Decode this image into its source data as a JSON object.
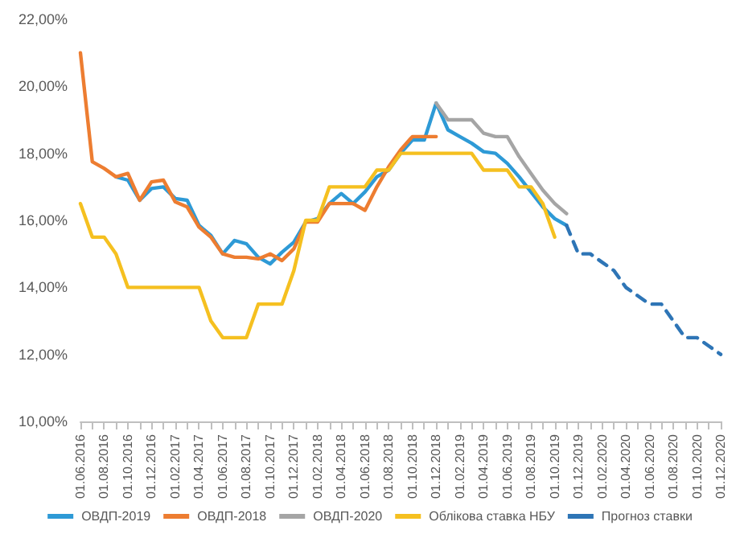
{
  "chart_data": {
    "type": "line",
    "categories": [
      "01.06.2016",
      null,
      "01.08.2016",
      null,
      "01.10.2016",
      null,
      "01.12.2016",
      null,
      "01.02.2017",
      null,
      "01.04.2017",
      null,
      "01.06.2017",
      null,
      "01.08.2017",
      null,
      "01.10.2017",
      null,
      "01.12.2017",
      null,
      "01.02.2018",
      null,
      "01.04.2018",
      null,
      "01.06.2018",
      null,
      "01.08.2018",
      null,
      "01.10.2018",
      null,
      "01.12.2018",
      null,
      "01.02.2019",
      null,
      "01.04.2019",
      null,
      "01.06.2019",
      null,
      "01.08.2019",
      null,
      "01.10.2019",
      null,
      "01.12.2019",
      null,
      "01.02.2020",
      null,
      "01.04.2020",
      null,
      "01.06.2020",
      null,
      "01.08.2020",
      null,
      "01.10.2020",
      null,
      "01.12.2020"
    ],
    "series": [
      {
        "name": "ОВДП-2019",
        "color": "#2e9ad6",
        "values": [
          null,
          null,
          null,
          17.3,
          17.2,
          16.6,
          16.95,
          17.0,
          16.65,
          16.6,
          15.85,
          15.55,
          15.0,
          15.4,
          15.3,
          14.9,
          14.7,
          15.05,
          15.35,
          15.95,
          16.05,
          16.5,
          16.8,
          16.5,
          16.85,
          17.3,
          17.5,
          18.0,
          18.4,
          18.4,
          19.5,
          18.7,
          18.5,
          18.3,
          18.05,
          18.0,
          17.7,
          17.3,
          16.85,
          16.4,
          16.05,
          15.85,
          null,
          null,
          null,
          null,
          null,
          null,
          null,
          null,
          null,
          null,
          null,
          null,
          null
        ]
      },
      {
        "name": "ОВДП-2018",
        "color": "#ed7d31",
        "values": [
          21.0,
          17.75,
          17.55,
          17.3,
          17.4,
          16.6,
          17.15,
          17.2,
          16.55,
          16.4,
          15.8,
          15.5,
          15.0,
          14.9,
          14.9,
          14.85,
          15.0,
          14.8,
          15.15,
          15.95,
          15.95,
          16.5,
          16.5,
          16.5,
          16.3,
          17.0,
          17.6,
          18.1,
          18.5,
          18.5,
          18.5,
          null,
          null,
          null,
          null,
          null,
          null,
          null,
          null,
          null,
          null,
          null,
          null,
          null,
          null,
          null,
          null,
          null,
          null,
          null,
          null,
          null,
          null,
          null,
          null
        ]
      },
      {
        "name": "ОВДП-2020",
        "color": "#a5a5a5",
        "values": [
          null,
          null,
          null,
          null,
          null,
          null,
          null,
          null,
          null,
          null,
          null,
          null,
          null,
          null,
          null,
          null,
          null,
          null,
          null,
          null,
          null,
          null,
          null,
          null,
          null,
          null,
          null,
          null,
          null,
          null,
          19.5,
          19.0,
          19.0,
          19.0,
          18.6,
          18.5,
          18.5,
          17.9,
          17.4,
          16.9,
          16.5,
          16.2,
          null,
          null,
          null,
          null,
          null,
          null,
          null,
          null,
          null,
          null,
          null,
          null,
          null
        ]
      },
      {
        "name": "Облікова ставка НБУ",
        "color": "#f5c020",
        "values": [
          16.5,
          15.5,
          15.5,
          15.0,
          14.0,
          14.0,
          14.0,
          14.0,
          14.0,
          14.0,
          14.0,
          13.0,
          12.5,
          12.5,
          12.5,
          13.5,
          13.5,
          13.5,
          14.5,
          16.0,
          16.0,
          17.0,
          17.0,
          17.0,
          17.0,
          17.5,
          17.5,
          18.0,
          18.0,
          18.0,
          18.0,
          18.0,
          18.0,
          18.0,
          17.5,
          17.5,
          17.5,
          17.0,
          17.0,
          16.5,
          15.5,
          null,
          null,
          null,
          null,
          null,
          null,
          null,
          null,
          null,
          null,
          null,
          null,
          null,
          null
        ]
      },
      {
        "name": "Прогноз ставки",
        "color": "#2e75b6",
        "line_style": "dashed",
        "values": [
          null,
          null,
          null,
          null,
          null,
          null,
          null,
          null,
          null,
          null,
          null,
          null,
          null,
          null,
          null,
          null,
          null,
          null,
          null,
          null,
          null,
          null,
          null,
          null,
          null,
          null,
          null,
          null,
          null,
          null,
          null,
          null,
          null,
          null,
          null,
          null,
          null,
          null,
          null,
          null,
          null,
          15.85,
          15.0,
          15.0,
          14.75,
          14.5,
          14.0,
          13.75,
          13.5,
          13.5,
          13.0,
          12.5,
          12.5,
          12.25,
          12.0
        ]
      }
    ],
    "ylim": [
      10,
      22
    ],
    "yticks": [
      {
        "value": 10,
        "label": "10,00%"
      },
      {
        "value": 12,
        "label": "12,00%"
      },
      {
        "value": 14,
        "label": "14,00%"
      },
      {
        "value": 16,
        "label": "16,00%"
      },
      {
        "value": 18,
        "label": "18,00%"
      },
      {
        "value": 20,
        "label": "20,00%"
      },
      {
        "value": 22,
        "label": "22,00%"
      }
    ],
    "grid": false,
    "legend": "bottom",
    "marker": "none",
    "line_style": "solid"
  }
}
